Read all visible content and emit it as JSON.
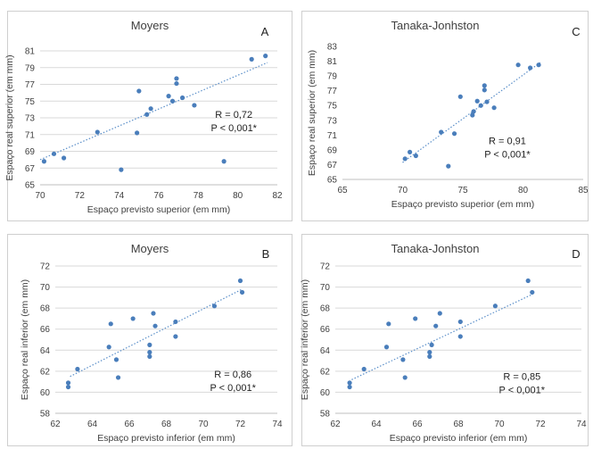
{
  "colors": {
    "point": "#4a7ebb",
    "trend": "#5b8fc9",
    "grid": "#d9d9d9",
    "axis": "#bfbfbf",
    "panel_border": "#cfcfcf"
  },
  "chart_data": [
    {
      "id": "A",
      "type": "scatter",
      "title": "Moyers",
      "letter": "A",
      "xlabel": "Espaço previsto superior (em mm)",
      "ylabel": "Espaço real superior (em mm)",
      "xlim": [
        70,
        82
      ],
      "ylim": [
        65,
        81
      ],
      "xticks": [
        70,
        72,
        74,
        76,
        78,
        80,
        82
      ],
      "yticks": [
        65,
        67,
        69,
        71,
        73,
        75,
        77,
        79,
        81
      ],
      "xtick_labels": [
        "70",
        "72",
        "74",
        "76",
        "78",
        "80",
        "82"
      ],
      "ytick_labels": [
        "65",
        "67",
        "69",
        "71",
        "73",
        "75",
        "77",
        "79",
        "81"
      ],
      "grid": "horizontal",
      "annotations": [
        "R = 0,72",
        "P < 0,001*"
      ],
      "annotation_pos": [
        79.8,
        73.0
      ],
      "trendline": {
        "x": [
          70.0,
          81.5
        ],
        "y": [
          68.0,
          79.6
        ]
      },
      "points": [
        [
          70.2,
          67.8
        ],
        [
          70.7,
          68.7
        ],
        [
          71.2,
          68.2
        ],
        [
          72.9,
          71.3
        ],
        [
          74.1,
          66.8
        ],
        [
          74.9,
          71.2
        ],
        [
          75.0,
          76.2
        ],
        [
          75.4,
          73.4
        ],
        [
          75.6,
          74.1
        ],
        [
          76.5,
          75.6
        ],
        [
          76.7,
          75.0
        ],
        [
          76.9,
          77.1
        ],
        [
          76.9,
          77.7
        ],
        [
          77.2,
          75.4
        ],
        [
          77.8,
          74.5
        ],
        [
          79.3,
          67.8
        ],
        [
          80.7,
          80.0
        ],
        [
          81.4,
          80.4
        ]
      ]
    },
    {
      "id": "C",
      "type": "scatter",
      "title": "Tanaka-Jonhston",
      "letter": "C",
      "xlabel": "Espaço previsto superior (em mm)",
      "ylabel": "Espaço real superior (em mm)",
      "xlim": [
        65,
        85
      ],
      "ylim": [
        65,
        83
      ],
      "xticks": [
        65,
        70,
        75,
        80,
        85
      ],
      "yticks": [
        65,
        67,
        69,
        71,
        73,
        75,
        77,
        79,
        81,
        83
      ],
      "xtick_labels": [
        "65",
        "70",
        "75",
        "80",
        "85"
      ],
      "ytick_labels": [
        "65",
        "67",
        "69",
        "71",
        "73",
        "75",
        "77",
        "79",
        "81",
        "83"
      ],
      "grid": "none",
      "annotations": [
        "R = 0,91",
        "P < 0,001*"
      ],
      "annotation_pos": [
        78.7,
        69.8
      ],
      "trendline": {
        "x": [
          70.0,
          81.5
        ],
        "y": [
          67.3,
          80.9
        ]
      },
      "points": [
        [
          70.2,
          67.8
        ],
        [
          70.6,
          68.7
        ],
        [
          71.1,
          68.2
        ],
        [
          73.2,
          71.4
        ],
        [
          73.8,
          66.8
        ],
        [
          74.3,
          71.2
        ],
        [
          74.8,
          76.2
        ],
        [
          75.8,
          73.7
        ],
        [
          75.9,
          74.2
        ],
        [
          76.2,
          75.6
        ],
        [
          76.5,
          75.0
        ],
        [
          76.8,
          77.1
        ],
        [
          76.8,
          77.7
        ],
        [
          77.0,
          75.5
        ],
        [
          77.6,
          74.7
        ],
        [
          79.6,
          80.5
        ],
        [
          80.6,
          80.1
        ],
        [
          81.3,
          80.5
        ]
      ]
    },
    {
      "id": "B",
      "type": "scatter",
      "title": "Moyers",
      "letter": "B",
      "xlabel": "Espaço previsto inferior (em mm)",
      "ylabel": "Espaço real inferior (em mm)",
      "xlim": [
        62,
        74
      ],
      "ylim": [
        58,
        72
      ],
      "xticks": [
        62,
        64,
        66,
        68,
        70,
        72,
        74
      ],
      "yticks": [
        58,
        60,
        62,
        64,
        66,
        68,
        70,
        72
      ],
      "xtick_labels": [
        "62",
        "64",
        "66",
        "68",
        "70",
        "72",
        "74"
      ],
      "ytick_labels": [
        "58",
        "60",
        "62",
        "64",
        "66",
        "68",
        "70",
        "72"
      ],
      "grid": "horizontal",
      "annotations": [
        "R = 0,86",
        "P < 0,001*"
      ],
      "annotation_pos": [
        71.6,
        61.4
      ],
      "trendline": {
        "x": [
          62.8,
          72.1
        ],
        "y": [
          61.5,
          69.8
        ]
      },
      "points": [
        [
          62.7,
          60.9
        ],
        [
          62.7,
          60.5
        ],
        [
          63.2,
          62.2
        ],
        [
          64.9,
          64.3
        ],
        [
          65.0,
          66.5
        ],
        [
          65.3,
          63.1
        ],
        [
          65.4,
          61.4
        ],
        [
          66.2,
          67.0
        ],
        [
          67.1,
          63.8
        ],
        [
          67.1,
          64.5
        ],
        [
          67.1,
          63.4
        ],
        [
          67.3,
          67.5
        ],
        [
          67.4,
          66.3
        ],
        [
          68.5,
          66.7
        ],
        [
          68.5,
          65.3
        ],
        [
          70.6,
          68.2
        ],
        [
          72.0,
          70.6
        ],
        [
          72.1,
          69.5
        ]
      ]
    },
    {
      "id": "D",
      "type": "scatter",
      "title": "Tanaka-Jonhston",
      "letter": "D",
      "xlabel": "Espaço previsto inferior (em mm)",
      "ylabel": "Espaço real inferior (em mm)",
      "xlim": [
        62,
        74
      ],
      "ylim": [
        58,
        72
      ],
      "xticks": [
        62,
        64,
        66,
        68,
        70,
        72,
        74
      ],
      "yticks": [
        58,
        60,
        62,
        64,
        66,
        68,
        70,
        72
      ],
      "xtick_labels": [
        "62",
        "64",
        "66",
        "68",
        "70",
        "72",
        "74"
      ],
      "ytick_labels": [
        "58",
        "60",
        "62",
        "64",
        "66",
        "68",
        "70",
        "72"
      ],
      "grid": "horizontal",
      "annotations": [
        "R = 0,85",
        "P < 0,001*"
      ],
      "annotation_pos": [
        71.1,
        61.2
      ],
      "trendline": {
        "x": [
          62.8,
          71.6
        ],
        "y": [
          61.2,
          69.3
        ]
      },
      "points": [
        [
          62.7,
          60.9
        ],
        [
          62.7,
          60.5
        ],
        [
          63.4,
          62.2
        ],
        [
          64.5,
          64.3
        ],
        [
          64.6,
          66.5
        ],
        [
          65.3,
          63.1
        ],
        [
          65.4,
          61.4
        ],
        [
          65.9,
          67.0
        ],
        [
          66.6,
          63.8
        ],
        [
          66.7,
          64.5
        ],
        [
          66.6,
          63.4
        ],
        [
          67.1,
          67.5
        ],
        [
          66.9,
          66.3
        ],
        [
          68.1,
          66.7
        ],
        [
          68.1,
          65.3
        ],
        [
          69.8,
          68.2
        ],
        [
          71.4,
          70.6
        ],
        [
          71.6,
          69.5
        ]
      ]
    }
  ]
}
